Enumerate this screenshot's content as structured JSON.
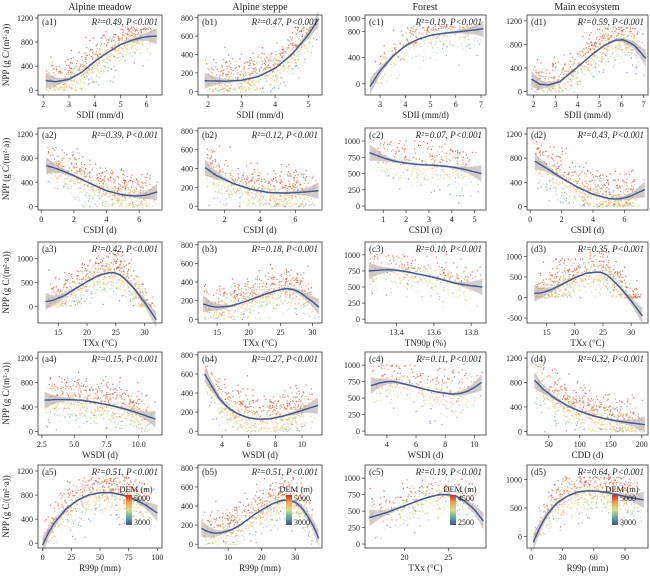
{
  "column_titles": [
    "Alpine meadow",
    "Alpine steppe",
    "Forest",
    "Main ecosystem"
  ],
  "ylabel": "NPP (g C/(m²·a))",
  "colorbar_title": "DEM (m)",
  "colors": {
    "fit_line": "#3a5b9a",
    "ci_band": "#b7aaa8",
    "dem_low": "#4a4f9a",
    "dem_mid": "#d8e08a",
    "dem_high": "#c8302a"
  },
  "chart_data": [
    {
      "id": "a1",
      "type": "scatter",
      "panel_label": "(a1)",
      "stat": "R²=0.49, P<0.001",
      "xlabel": "SDII (mm/d)",
      "xlim": [
        1.8,
        6.6
      ],
      "ylim": [
        -80,
        1250
      ],
      "xticks": [
        2,
        3,
        4,
        5,
        6
      ],
      "yticks": [
        0,
        400,
        800,
        1200
      ],
      "fit": {
        "x": [
          2.1,
          2.5,
          3,
          3.5,
          4,
          4.5,
          5,
          5.5,
          6,
          6.4
        ],
        "y": [
          160,
          140,
          180,
          300,
          480,
          630,
          760,
          840,
          890,
          900
        ]
      }
    },
    {
      "id": "b1",
      "type": "scatter",
      "panel_label": "(b1)",
      "stat": "R²=0.47, P<0.001",
      "xlabel": "SDII (mm/d)",
      "xlim": [
        1.7,
        5.4
      ],
      "ylim": [
        -40,
        830
      ],
      "xticks": [
        2,
        3,
        4,
        5
      ],
      "yticks": [
        0,
        200,
        400,
        600,
        800
      ],
      "fit": {
        "x": [
          1.9,
          2.5,
          3,
          3.5,
          4,
          4.5,
          5,
          5.3
        ],
        "y": [
          115,
          110,
          120,
          160,
          250,
          400,
          620,
          790
        ]
      }
    },
    {
      "id": "c1",
      "type": "scatter",
      "panel_label": "(c1)",
      "stat": "R²=0.19, P<0.001",
      "xlabel": "SDII (mm/d)",
      "xlim": [
        2.4,
        7.2
      ],
      "ylim": [
        -170,
        1050
      ],
      "xticks": [
        3,
        4,
        5,
        6,
        7
      ],
      "yticks": [
        0,
        400,
        800,
        1000
      ],
      "fit": {
        "x": [
          2.6,
          3,
          3.5,
          4,
          4.5,
          5,
          5.5,
          6,
          6.5,
          7.1
        ],
        "y": [
          -40,
          200,
          420,
          580,
          680,
          740,
          770,
          790,
          810,
          840
        ]
      }
    },
    {
      "id": "d1",
      "type": "scatter",
      "panel_label": "(d1)",
      "stat": "R²=0.59, P<0.001",
      "xlabel": "SDII (mm/d)",
      "xlim": [
        1.7,
        7.2
      ],
      "ylim": [
        -60,
        1300
      ],
      "xticks": [
        2,
        3,
        4,
        5,
        6,
        7
      ],
      "yticks": [
        0,
        400,
        800,
        1200
      ],
      "fit": {
        "x": [
          1.9,
          2.3,
          2.7,
          3.2,
          3.7,
          4.2,
          4.7,
          5.2,
          5.7,
          6.1,
          6.6,
          7.1
        ],
        "y": [
          210,
          120,
          110,
          170,
          320,
          480,
          640,
          780,
          870,
          880,
          780,
          560
        ]
      }
    },
    {
      "id": "a2",
      "type": "scatter",
      "panel_label": "(a2)",
      "stat": "R²=0.39, P<0.001",
      "xlabel": "CSDI (d)",
      "xlim": [
        -0.2,
        7.4
      ],
      "ylim": [
        -60,
        1300
      ],
      "xticks": [
        0,
        2,
        4,
        6
      ],
      "yticks": [
        0,
        400,
        800,
        1200
      ],
      "fit": {
        "x": [
          0.3,
          1,
          2,
          3,
          4,
          5,
          5.8,
          6.5,
          7.1
        ],
        "y": [
          680,
          620,
          510,
          380,
          260,
          190,
          170,
          190,
          240
        ]
      }
    },
    {
      "id": "b2",
      "type": "scatter",
      "panel_label": "(b2)",
      "stat": "R²=0.12, P<0.001",
      "xlabel": "CSDI (d)",
      "xlim": [
        0.5,
        7.5
      ],
      "ylim": [
        -40,
        830
      ],
      "xticks": [
        2,
        4,
        6
      ],
      "yticks": [
        0,
        200,
        400,
        600,
        800
      ],
      "fit": {
        "x": [
          0.9,
          1.5,
          2.5,
          3.5,
          4.5,
          5.5,
          6.5,
          7.3
        ],
        "y": [
          410,
          330,
          240,
          180,
          145,
          140,
          150,
          165
        ]
      }
    },
    {
      "id": "c2",
      "type": "scatter",
      "panel_label": "(c2)",
      "stat": "R²=0.07, P<0.001",
      "xlabel": "CSDI (d)",
      "xlim": [
        0.2,
        5.5
      ],
      "ylim": [
        -60,
        1200
      ],
      "xticks": [
        1,
        2,
        3,
        4,
        5
      ],
      "yticks": [
        0,
        250,
        500,
        750,
        1000
      ],
      "fit": {
        "x": [
          0.4,
          1,
          1.5,
          2,
          2.5,
          3,
          3.5,
          4,
          4.5,
          5.3
        ],
        "y": [
          820,
          740,
          690,
          660,
          640,
          630,
          620,
          600,
          570,
          500
        ]
      }
    },
    {
      "id": "d2",
      "type": "scatter",
      "panel_label": "(d2)",
      "stat": "R²=0.43, P<0.001",
      "xlabel": "CSDI (d)",
      "xlim": [
        -0.2,
        7.5
      ],
      "ylim": [
        -60,
        1300
      ],
      "xticks": [
        0,
        2,
        4,
        6
      ],
      "yticks": [
        0,
        400,
        800,
        1200
      ],
      "fit": {
        "x": [
          0.3,
          1,
          2,
          3,
          4,
          5,
          5.6,
          6.3,
          7.3
        ],
        "y": [
          750,
          640,
          470,
          320,
          200,
          130,
          120,
          160,
          280
        ]
      }
    },
    {
      "id": "a3",
      "type": "scatter",
      "panel_label": "(a3)",
      "stat": "R²=0.42, P<0.001",
      "xlabel": "TXx (°C)",
      "xlim": [
        11.5,
        33
      ],
      "ylim": [
        -350,
        1350
      ],
      "xticks": [
        15,
        20,
        25,
        30
      ],
      "yticks": [
        0,
        500,
        1000
      ],
      "fit": {
        "x": [
          12.8,
          14,
          16,
          18,
          20,
          22,
          24,
          25,
          26,
          28,
          30,
          32
        ],
        "y": [
          100,
          120,
          220,
          370,
          520,
          650,
          710,
          700,
          640,
          400,
          80,
          -280
        ]
      }
    },
    {
      "id": "b3",
      "type": "scatter",
      "panel_label": "(b3)",
      "stat": "R²=0.18, P<0.001",
      "xlabel": "TXx (°C)",
      "xlim": [
        12,
        31.5
      ],
      "ylim": [
        -40,
        830
      ],
      "xticks": [
        15,
        20,
        25,
        30
      ],
      "yticks": [
        0,
        200,
        400,
        600,
        800
      ],
      "fit": {
        "x": [
          12.8,
          14,
          15,
          17,
          19,
          21,
          23,
          25,
          26,
          27,
          28,
          29,
          30,
          31
        ],
        "y": [
          165,
          140,
          130,
          140,
          180,
          230,
          280,
          320,
          330,
          320,
          290,
          240,
          190,
          130
        ]
      }
    },
    {
      "id": "c3",
      "type": "scatter",
      "panel_label": "(c3)",
      "stat": "R²=0.10, P<0.001",
      "xlabel": "TN90p (%)",
      "xlim": [
        13.23,
        13.88
      ],
      "ylim": [
        -60,
        1200
      ],
      "xticks": [
        13.4,
        13.6,
        13.8
      ],
      "yticks": [
        0,
        250,
        500,
        750,
        1000
      ],
      "fit": {
        "x": [
          13.25,
          13.3,
          13.35,
          13.4,
          13.45,
          13.5,
          13.55,
          13.6,
          13.65,
          13.7,
          13.75,
          13.8,
          13.86
        ],
        "y": [
          750,
          760,
          770,
          760,
          740,
          710,
          680,
          650,
          610,
          570,
          540,
          520,
          500
        ]
      }
    },
    {
      "id": "d3",
      "type": "scatter",
      "panel_label": "(d3)",
      "stat": "R²=0.35, P<0.001",
      "xlabel": "TXx (°C)",
      "xlim": [
        11.5,
        33
      ],
      "ylim": [
        -620,
        1350
      ],
      "xticks": [
        15,
        20,
        25,
        30
      ],
      "yticks": [
        -500,
        0,
        500,
        1000
      ],
      "fit": {
        "x": [
          12.8,
          14,
          16,
          18,
          20,
          22,
          24,
          25,
          26,
          28,
          30,
          32
        ],
        "y": [
          100,
          110,
          200,
          340,
          480,
          590,
          620,
          600,
          520,
          250,
          -80,
          -450
        ]
      }
    },
    {
      "id": "a4",
      "type": "scatter",
      "panel_label": "(a4)",
      "stat": "R²=0.15, P<0.001",
      "xlabel": "WSDI (d)",
      "xlim": [
        2.2,
        11.8
      ],
      "ylim": [
        -60,
        1300
      ],
      "xticks": [
        2.5,
        5.0,
        7.5,
        10.0
      ],
      "yticks": [
        0,
        400,
        800,
        1200
      ],
      "fit": {
        "x": [
          2.7,
          3.5,
          4.5,
          5.5,
          6.5,
          7.5,
          8.5,
          9.5,
          10.5,
          11.3
        ],
        "y": [
          510,
          520,
          520,
          510,
          480,
          440,
          390,
          330,
          260,
          200
        ]
      }
    },
    {
      "id": "b4",
      "type": "scatter",
      "panel_label": "(b4)",
      "stat": "R²=0.27, P<0.001",
      "xlabel": "WSDI (d)",
      "xlim": [
        2.2,
        11.5
      ],
      "ylim": [
        -40,
        830
      ],
      "xticks": [
        4,
        6,
        8,
        10
      ],
      "yticks": [
        0,
        200,
        400,
        600,
        800
      ],
      "fit": {
        "x": [
          2.7,
          3.2,
          3.8,
          4.5,
          5.2,
          6,
          6.8,
          7.6,
          8.5,
          9.5,
          10.5,
          11.2
        ],
        "y": [
          600,
          480,
          340,
          240,
          180,
          140,
          125,
          130,
          155,
          195,
          240,
          270
        ]
      }
    },
    {
      "id": "c4",
      "type": "scatter",
      "panel_label": "(c4)",
      "stat": "R²=0.11, P<0.001",
      "xlabel": "WSDI (d)",
      "xlim": [
        2.5,
        10.8
      ],
      "ylim": [
        -60,
        1200
      ],
      "xticks": [
        4,
        6,
        8,
        10
      ],
      "yticks": [
        0,
        250,
        500,
        750,
        1000
      ],
      "fit": {
        "x": [
          2.9,
          3.5,
          4,
          4.5,
          5.5,
          6.5,
          7.5,
          8.5,
          9,
          9.5,
          10,
          10.5
        ],
        "y": [
          690,
          730,
          750,
          750,
          700,
          640,
          590,
          560,
          570,
          600,
          660,
          740
        ]
      }
    },
    {
      "id": "d4",
      "type": "scatter",
      "panel_label": "(d4)",
      "stat": "R²=0.32, P<0.001",
      "xlabel": "CDD (d)",
      "xlim": [
        15,
        210
      ],
      "ylim": [
        -60,
        1300
      ],
      "xticks": [
        50,
        100,
        150,
        200
      ],
      "yticks": [
        0,
        400,
        800,
        1200
      ],
      "fit": {
        "x": [
          27,
          40,
          60,
          80,
          100,
          120,
          140,
          160,
          180,
          205
        ],
        "y": [
          840,
          700,
          540,
          420,
          330,
          260,
          210,
          170,
          140,
          110
        ]
      }
    },
    {
      "id": "a5",
      "type": "scatter",
      "panel_label": "(a5)",
      "stat": "R²=0.51, P<0.001",
      "xlabel": "R99p (mm)",
      "xlim": [
        -4,
        104
      ],
      "ylim": [
        -80,
        1300
      ],
      "xticks": [
        0,
        25,
        50,
        75,
        100
      ],
      "yticks": [
        0,
        400,
        800,
        1200
      ],
      "fit": {
        "x": [
          0,
          5,
          10,
          20,
          30,
          40,
          50,
          60,
          70,
          80,
          90,
          100
        ],
        "y": [
          -30,
          170,
          330,
          560,
          710,
          800,
          840,
          840,
          800,
          730,
          630,
          500
        ]
      },
      "colorbar": {
        "min_label": "3000",
        "max_label": "5000"
      }
    },
    {
      "id": "b5",
      "type": "scatter",
      "panel_label": "(b5)",
      "stat": "R²=0.51, P<0.001",
      "xlabel": "R99p (mm)",
      "xlim": [
        1,
        38
      ],
      "ylim": [
        -40,
        830
      ],
      "xticks": [
        10,
        20,
        30
      ],
      "yticks": [
        0,
        200,
        400,
        600,
        800
      ],
      "fit": {
        "x": [
          2,
          4,
          6,
          8,
          11,
          14,
          17,
          20,
          23,
          26,
          28,
          30,
          32,
          34,
          36,
          37
        ],
        "y": [
          165,
          130,
          115,
          120,
          150,
          210,
          290,
          360,
          420,
          460,
          460,
          440,
          380,
          280,
          150,
          60
        ]
      },
      "colorbar": {
        "min_label": "3000",
        "max_label": "5000"
      }
    },
    {
      "id": "c5",
      "type": "scatter",
      "panel_label": "(c5)",
      "stat": "R²=0.19, P<0.001",
      "xlabel": "TXx (°C)",
      "xlim": [
        15.5,
        29.3
      ],
      "ylim": [
        -60,
        1200
      ],
      "xticks": [
        20,
        25
      ],
      "yticks": [
        0,
        250,
        500,
        750,
        1000
      ],
      "fit": {
        "x": [
          16,
          17,
          18,
          19,
          20,
          21,
          22,
          23,
          24,
          25,
          26,
          27,
          28,
          29
        ],
        "y": [
          400,
          440,
          480,
          530,
          580,
          630,
          680,
          720,
          750,
          750,
          720,
          640,
          520,
          350
        ]
      },
      "colorbar": {
        "min_label": "2500",
        "max_label": "4500"
      }
    },
    {
      "id": "d5",
      "type": "scatter",
      "panel_label": "(d5)",
      "stat": "R²=0.64, P<0.001",
      "xlabel": "R99p (mm)",
      "xlim": [
        -4,
        112
      ],
      "ylim": [
        -200,
        1250
      ],
      "xticks": [
        0,
        30,
        60,
        90
      ],
      "yticks": [
        0,
        500,
        1000
      ],
      "fit": {
        "x": [
          2,
          8,
          15,
          25,
          35,
          45,
          55,
          65,
          75,
          85,
          95,
          108
        ],
        "y": [
          -100,
          150,
          380,
          590,
          710,
          780,
          800,
          790,
          760,
          720,
          680,
          640
        ]
      },
      "colorbar": {
        "min_label": "3000",
        "max_label": "5000"
      }
    }
  ]
}
